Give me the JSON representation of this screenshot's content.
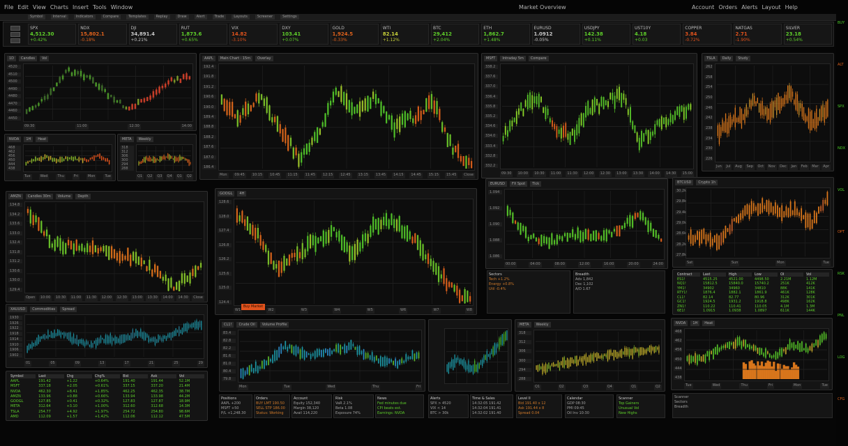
{
  "app": {
    "title": "Market Overview",
    "menu": [
      "File",
      "Edit",
      "View",
      "Charts",
      "Insert",
      "Tools",
      "Window"
    ],
    "right_menu": [
      "Account",
      "Orders",
      "Alerts",
      "Layout",
      "Help"
    ]
  },
  "toolbar": {
    "items": [
      "Symbol",
      "Interval",
      "Indicators",
      "Compare",
      "Templates",
      "Replay",
      "Draw",
      "Alert",
      "Trade",
      "Layouts",
      "Screener",
      "Settings"
    ]
  },
  "ticker_tiles": [
    {
      "name": "SPX",
      "value": "4,512.30",
      "change": "+0.42%",
      "color": "#5ecf2a"
    },
    {
      "name": "NDX",
      "value": "15,802.1",
      "change": "-0.18%",
      "color": "#e0621c"
    },
    {
      "name": "DJI",
      "value": "34,891.4",
      "change": "+0.21%",
      "color": "#c8c8c8"
    },
    {
      "name": "RUT",
      "value": "1,873.6",
      "change": "+0.65%",
      "color": "#5ecf2a"
    },
    {
      "name": "VIX",
      "value": "14.82",
      "change": "-3.10%",
      "color": "#e0521c"
    },
    {
      "name": "DXY",
      "value": "103.41",
      "change": "+0.07%",
      "color": "#5ecf2a"
    },
    {
      "name": "GOLD",
      "value": "1,924.5",
      "change": "-0.33%",
      "color": "#e0621c"
    },
    {
      "name": "WTI",
      "value": "82.14",
      "change": "+1.12%",
      "color": "#c8d23a"
    },
    {
      "name": "BTC",
      "value": "29,412",
      "change": "+2.04%",
      "color": "#5ecf2a"
    },
    {
      "name": "ETH",
      "value": "1,862.7",
      "change": "+1.48%",
      "color": "#5ecf2a"
    },
    {
      "name": "EURUSD",
      "value": "1.0912",
      "change": "-0.05%",
      "color": "#c8c8c8"
    },
    {
      "name": "USDJPY",
      "value": "142.38",
      "change": "+0.11%",
      "color": "#5ecf2a"
    },
    {
      "name": "UST10Y",
      "value": "4.18",
      "change": "+0.03",
      "color": "#5ecf2a"
    },
    {
      "name": "COPPER",
      "value": "3.84",
      "change": "-0.72%",
      "color": "#e0521c"
    },
    {
      "name": "NATGAS",
      "value": "2.71",
      "change": "-1.90%",
      "color": "#e0521c"
    },
    {
      "name": "SILVER",
      "value": "23.18",
      "change": "+0.54%",
      "color": "#5ecf2a"
    }
  ],
  "panels": [
    {
      "id": "p1",
      "tabs": [
        "1D",
        "Candles",
        "Vol"
      ],
      "yticks": [
        "4520",
        "4510",
        "4500",
        "4490",
        "4480",
        "4470",
        "4460",
        "4450"
      ],
      "xticks": [
        "09:30",
        "11:00",
        "12:30",
        "14:00"
      ]
    },
    {
      "id": "p2",
      "tabs": [
        "AAPL",
        "Main Chart · 15m",
        "Overlay"
      ],
      "yticks": [
        "192.4",
        "191.8",
        "191.2",
        "190.6",
        "190.0",
        "189.4",
        "188.8",
        "188.2",
        "187.6",
        "187.0",
        "186.4"
      ],
      "xticks": [
        "Mon",
        "09:45",
        "10:15",
        "10:45",
        "11:15",
        "11:45",
        "12:15",
        "12:45",
        "13:15",
        "13:45",
        "14:15",
        "14:45",
        "15:15",
        "15:45",
        "Close"
      ]
    },
    {
      "id": "p3",
      "tabs": [
        "MSFT",
        "Intraday 5m",
        "Compare"
      ],
      "yticks": [
        "338.2",
        "337.6",
        "337.0",
        "336.4",
        "335.8",
        "335.2",
        "334.6",
        "334.0",
        "333.4",
        "332.8",
        "332.2"
      ],
      "xticks": [
        "09:30",
        "10:00",
        "10:30",
        "11:00",
        "11:30",
        "12:00",
        "12:30",
        "13:00",
        "13:30",
        "14:00",
        "14:30",
        "15:00"
      ]
    },
    {
      "id": "p4",
      "tabs": [
        "NVDA",
        "1H",
        "Heat"
      ],
      "yticks": [
        "468",
        "462",
        "456",
        "450",
        "444",
        "438"
      ],
      "xticks": [
        "Tue",
        "Wed",
        "Thu",
        "Fri",
        "Mon",
        "Tue"
      ]
    },
    {
      "id": "p5",
      "tabs": [
        "TSLA",
        "Daily",
        "Study"
      ],
      "yticks": [
        "262",
        "258",
        "254",
        "250",
        "246",
        "242",
        "238",
        "234",
        "230",
        "226"
      ],
      "xticks": [
        "Jun",
        "Jul",
        "Aug",
        "Sep",
        "Oct",
        "Nov",
        "Dec",
        "Jan",
        "Feb",
        "Mar",
        "Apr"
      ]
    },
    {
      "id": "p6",
      "tabs": [
        "AMZN",
        "Candles 30m",
        "Volume",
        "Depth"
      ],
      "yticks": [
        "134.8",
        "134.2",
        "133.6",
        "133.0",
        "132.4",
        "131.8",
        "131.2",
        "130.6",
        "130.0",
        "129.4"
      ],
      "xticks": [
        "Open",
        "10:00",
        "10:30",
        "11:00",
        "11:30",
        "12:00",
        "12:30",
        "13:00",
        "13:30",
        "14:00",
        "14:30",
        "Close"
      ]
    },
    {
      "id": "p7",
      "tabs": [
        "GOOGL",
        "4H"
      ],
      "yticks": [
        "128.6",
        "128.0",
        "127.4",
        "126.8",
        "126.2",
        "125.6",
        "125.0",
        "124.4"
      ],
      "xticks": [
        "W1",
        "W2",
        "W3",
        "W4",
        "W5",
        "W6",
        "W7",
        "W8"
      ]
    },
    {
      "id": "p8",
      "tabs": [
        "META",
        "Weekly"
      ],
      "yticks": [
        "318",
        "312",
        "306",
        "300",
        "294",
        "288"
      ],
      "xticks": [
        "Q1",
        "Q2",
        "Q3",
        "Q4",
        "Q1",
        "Q2"
      ]
    },
    {
      "id": "p9",
      "tabs": [
        "EURUSD",
        "FX Spot",
        "Tick"
      ],
      "yticks": [
        "1.094",
        "1.092",
        "1.090",
        "1.088",
        "1.086"
      ],
      "xticks": [
        "00:00",
        "04:00",
        "08:00",
        "12:00",
        "16:00",
        "20:00",
        "24:00"
      ]
    },
    {
      "id": "p10",
      "tabs": [
        "BTCUSD",
        "Crypto 1h"
      ],
      "yticks": [
        "30.2k",
        "29.8k",
        "29.4k",
        "29.0k",
        "28.6k",
        "28.2k",
        "27.8k"
      ],
      "xticks": [
        "Sat",
        "Sun",
        "Mon",
        "Tue"
      ]
    },
    {
      "id": "p11",
      "tabs": [
        "XAUUSD",
        "Commodities",
        "Spread"
      ],
      "yticks": [
        "1930",
        "1926",
        "1922",
        "1918",
        "1914",
        "1910",
        "1906",
        "1902"
      ],
      "xticks": [
        "01",
        "05",
        "09",
        "13",
        "17",
        "21",
        "25",
        "29"
      ]
    },
    {
      "id": "p12",
      "tabs": [
        "CL1!",
        "Crude Oil",
        "Volume Profile"
      ],
      "yticks": [
        "83.4",
        "82.8",
        "82.2",
        "81.6",
        "81.0",
        "80.4",
        "79.8"
      ],
      "xticks": [
        "Mon",
        "Tue",
        "Wed",
        "Thu",
        "Fri"
      ]
    }
  ],
  "order_button": "Buy Market",
  "watchlist_left": {
    "headers": [
      "Symbol",
      "Last",
      "Chg",
      "Chg%",
      "Bid",
      "Ask",
      "Vol"
    ],
    "rows": [
      [
        "AAPL",
        "191.42",
        "+1.22",
        "+0.64%",
        "191.40",
        "191.44",
        "52.1M"
      ],
      [
        "MSFT",
        "337.18",
        "+2.05",
        "+0.61%",
        "337.15",
        "337.20",
        "21.4M"
      ],
      [
        "NVDA",
        "462.30",
        "+8.41",
        "+1.85%",
        "462.25",
        "462.35",
        "38.7M"
      ],
      [
        "AMZN",
        "133.96",
        "+0.88",
        "+0.66%",
        "133.94",
        "133.98",
        "44.2M"
      ],
      [
        "GOOGL",
        "127.85",
        "+0.41",
        "+0.32%",
        "127.83",
        "127.87",
        "18.9M"
      ],
      [
        "META",
        "312.64",
        "+3.10",
        "+1.00%",
        "312.60",
        "312.68",
        "14.3M"
      ],
      [
        "TSLA",
        "254.77",
        "+4.92",
        "+1.97%",
        "254.72",
        "254.80",
        "98.6M"
      ],
      [
        "AMD",
        "112.09",
        "+1.57",
        "+1.42%",
        "112.06",
        "112.12",
        "47.5M"
      ]
    ]
  },
  "watchlist_right": {
    "headers": [
      "Contract",
      "Last",
      "High",
      "Low",
      "OI",
      "Vol"
    ],
    "rows": [
      [
        "ES1!",
        "4515.25",
        "4521.00",
        "4498.50",
        "2.21M",
        "1.12M"
      ],
      [
        "NQ1!",
        "15812.5",
        "15840.0",
        "15740.2",
        "251K",
        "412K"
      ],
      [
        "YM1!",
        "34902",
        "34960",
        "34810",
        "88K",
        "141K"
      ],
      [
        "RTY1!",
        "1876.4",
        "1882.1",
        "1861.9",
        "461K",
        "128K"
      ],
      [
        "CL1!",
        "82.14",
        "82.77",
        "80.96",
        "312K",
        "301K"
      ],
      [
        "GC1!",
        "1924.5",
        "1931.2",
        "1918.8",
        "498K",
        "162K"
      ],
      [
        "ZN1!",
        "110.22",
        "110.41",
        "110.05",
        "4.1M",
        "1.3M"
      ],
      [
        "6E1!",
        "1.0915",
        "1.0938",
        "1.0897",
        "611K",
        "144K"
      ]
    ]
  },
  "info_boxes": [
    {
      "title": "Positions",
      "lines": [
        "AAPL  +200",
        "MSFT  +50",
        "P/L  +1,248.30"
      ]
    },
    {
      "title": "Orders",
      "lines": [
        "BUY LMT 190.50",
        "SELL STP 186.00",
        "Status: Working"
      ]
    },
    {
      "title": "Account",
      "lines": [
        "Equity 152,340",
        "Margin 38,120",
        "Avail 114,220"
      ]
    },
    {
      "title": "Risk",
      "lines": [
        "VaR 2.1%",
        "Beta 1.08",
        "Exposure 74%"
      ]
    },
    {
      "title": "News",
      "lines": [
        "Fed minutes due",
        "CPI beats est.",
        "Earnings: NVDA"
      ]
    },
    {
      "title": "Alerts",
      "lines": [
        "SPX > 4520",
        "VIX < 14",
        "BTC > 30k"
      ]
    },
    {
      "title": "Time & Sales",
      "lines": [
        "14:32:05 191.42",
        "14:32:04 191.41",
        "14:32:02 191.40"
      ]
    },
    {
      "title": "Level II",
      "lines": [
        "Bid 191.40 x 12",
        "Ask 191.44 x 8",
        "Spread 0.04"
      ]
    },
    {
      "title": "Calendar",
      "lines": [
        "GDP 08:30",
        "PMI 09:45",
        "Oil Inv 10:30"
      ]
    },
    {
      "title": "Scanner",
      "lines": [
        "Top Gainers",
        "Unusual Vol",
        "New Highs"
      ]
    },
    {
      "title": "Sectors",
      "lines": [
        "Tech +1.2%",
        "Energy +0.8%",
        "Util -0.4%"
      ]
    },
    {
      "title": "Breadth",
      "lines": [
        "Adv 1,842",
        "Dec 1,102",
        "A/D 1.67"
      ]
    }
  ],
  "right_strip": [
    "BUY",
    "ALT",
    "SPX",
    "NDX",
    "VOL",
    "OPT",
    "RSK",
    "PNL",
    "LOG",
    "CFG"
  ],
  "colors": {
    "up": "#5ecf2a",
    "down": "#e0621c",
    "teal": "#1d8fa0",
    "yellow": "#c8c42a",
    "background": "#0d0d0d",
    "panel": "#141414"
  }
}
